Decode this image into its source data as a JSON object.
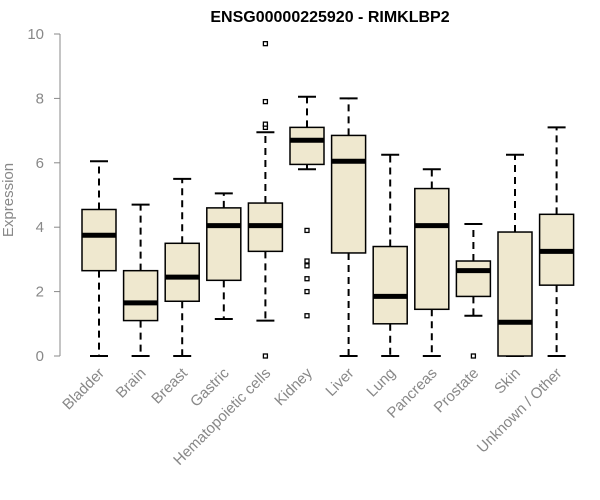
{
  "chart_data": {
    "type": "boxplot",
    "title": "ENSG00000225920 - RIMKLBP2",
    "xlabel": "",
    "ylabel": "Expression",
    "ylim": [
      0,
      10
    ],
    "yticks": [
      0,
      2,
      4,
      6,
      8,
      10
    ],
    "categories": [
      "Bladder",
      "Brain",
      "Breast",
      "Gastric",
      "Hematopoietic cells",
      "Kidney",
      "Liver",
      "Lung",
      "Pancreas",
      "Prostate",
      "Skin",
      "Unknown / Other"
    ],
    "boxes": [
      {
        "name": "Bladder",
        "whisker_low": 0.0,
        "q1": 2.65,
        "median": 3.75,
        "q3": 4.55,
        "whisker_high": 6.05,
        "outliers": []
      },
      {
        "name": "Brain",
        "whisker_low": 0.0,
        "q1": 1.1,
        "median": 1.65,
        "q3": 2.65,
        "whisker_high": 4.7,
        "outliers": []
      },
      {
        "name": "Breast",
        "whisker_low": 0.0,
        "q1": 1.7,
        "median": 2.45,
        "q3": 3.5,
        "whisker_high": 5.5,
        "outliers": []
      },
      {
        "name": "Gastric",
        "whisker_low": 1.15,
        "q1": 2.35,
        "median": 4.05,
        "q3": 4.6,
        "whisker_high": 5.05,
        "outliers": []
      },
      {
        "name": "Hematopoietic cells",
        "whisker_low": 1.1,
        "q1": 3.25,
        "median": 4.05,
        "q3": 4.75,
        "whisker_high": 6.95,
        "outliers": [
          0.0,
          7.1,
          7.2,
          7.9,
          9.7
        ]
      },
      {
        "name": "Kidney",
        "whisker_low": 5.8,
        "q1": 5.95,
        "median": 6.7,
        "q3": 7.1,
        "whisker_high": 8.05,
        "outliers": [
          1.25,
          2.0,
          2.4,
          2.8,
          2.95,
          3.9
        ]
      },
      {
        "name": "Liver",
        "whisker_low": 0.0,
        "q1": 3.2,
        "median": 6.05,
        "q3": 6.85,
        "whisker_high": 8.0,
        "outliers": []
      },
      {
        "name": "Lung",
        "whisker_low": 0.0,
        "q1": 1.0,
        "median": 1.85,
        "q3": 3.4,
        "whisker_high": 6.25,
        "outliers": []
      },
      {
        "name": "Pancreas",
        "whisker_low": 0.0,
        "q1": 1.45,
        "median": 4.05,
        "q3": 5.2,
        "whisker_high": 5.8,
        "outliers": []
      },
      {
        "name": "Prostate",
        "whisker_low": 1.25,
        "q1": 1.85,
        "median": 2.65,
        "q3": 2.95,
        "whisker_high": 4.1,
        "outliers": [
          0.0
        ]
      },
      {
        "name": "Skin",
        "whisker_low": 0.0,
        "q1": 0.0,
        "median": 1.05,
        "q3": 3.85,
        "whisker_high": 6.25,
        "outliers": []
      },
      {
        "name": "Unknown / Other",
        "whisker_low": 0.0,
        "q1": 2.2,
        "median": 3.25,
        "q3": 4.4,
        "whisker_high": 7.1,
        "outliers": []
      }
    ],
    "box_fill": "#efe8cf",
    "box_stroke": "#000000",
    "median_color": "#000000",
    "axis_color": "#888888",
    "grid": false
  }
}
